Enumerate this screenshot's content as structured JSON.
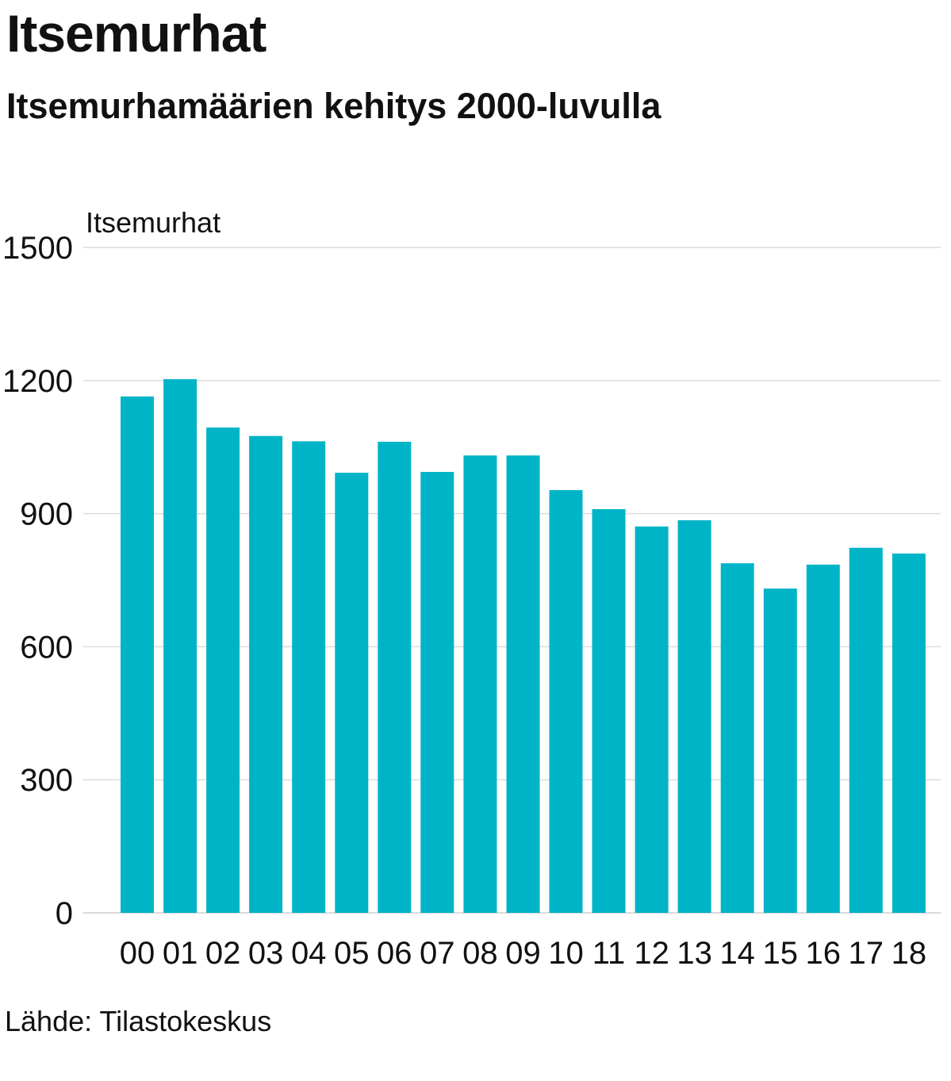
{
  "header": {
    "title": "Itsemurhat",
    "subtitle": "Itsemurhamäärien kehitys 2000-luvulla"
  },
  "footer": {
    "source": "Lähde: Tilastokeskus"
  },
  "colors": {
    "bar": "#00b4c8",
    "grid": "#dcdcdc",
    "text": "#111111"
  },
  "chart_data": {
    "type": "bar",
    "title": "Itsemurhat",
    "subtitle": "Itsemurhamäärien kehitys 2000-luvulla",
    "xlabel": "",
    "ylabel": "Itsemurhat",
    "ylim": [
      0,
      1500
    ],
    "yticks": [
      0,
      300,
      600,
      900,
      1200,
      1500
    ],
    "grid": true,
    "legend": "none",
    "categories": [
      "00",
      "01",
      "02",
      "03",
      "04",
      "05",
      "06",
      "07",
      "08",
      "09",
      "10",
      "11",
      "12",
      "13",
      "14",
      "15",
      "16",
      "17",
      "18"
    ],
    "series": [
      {
        "name": "Itsemurhat",
        "values": [
          1164,
          1203,
          1094,
          1075,
          1063,
          992,
          1062,
          994,
          1031,
          1031,
          953,
          910,
          871,
          885,
          788,
          731,
          785,
          823,
          810
        ]
      }
    ]
  }
}
